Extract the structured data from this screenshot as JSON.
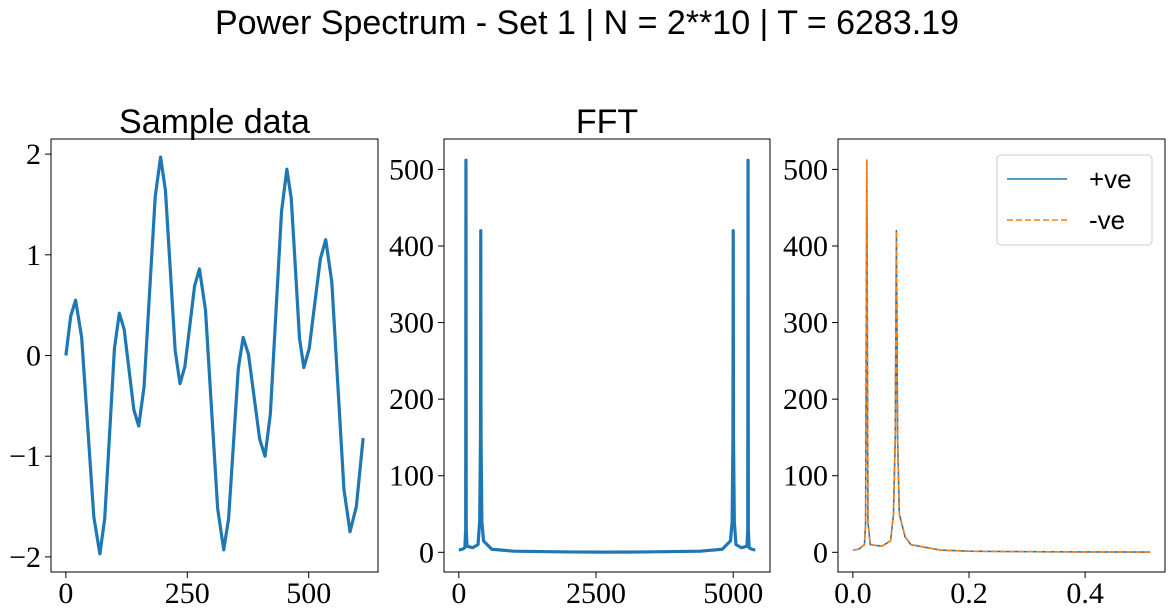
{
  "title": "Power Spectrum - Set 1 | N = 2**10 | T = 6283.19",
  "chart_data": [
    {
      "type": "line",
      "title": "Sample data",
      "color": "#1f77b4",
      "x": [
        0,
        10,
        20,
        32.5,
        45,
        57.5,
        70,
        80,
        90,
        100,
        110,
        120,
        130,
        140,
        150,
        161,
        172.5,
        184,
        195,
        205,
        215,
        225,
        235,
        245,
        255,
        265,
        275,
        287.5,
        300,
        312.5,
        325,
        335,
        345,
        355,
        365,
        376,
        387.5,
        399,
        410,
        421,
        432.5,
        444,
        455,
        464,
        472.5,
        481,
        490,
        501,
        512.5,
        524,
        535,
        547.5,
        560,
        572.5,
        585,
        598,
        612
      ],
      "values": [
        0,
        0.39,
        0.55,
        0.18,
        -0.71,
        -1.6,
        -1.97,
        -1.62,
        -0.78,
        0.07,
        0.42,
        0.26,
        -0.14,
        -0.54,
        -0.7,
        -0.31,
        0.64,
        1.58,
        1.97,
        1.64,
        0.85,
        0.05,
        -0.28,
        -0.11,
        0.29,
        0.69,
        0.86,
        0.45,
        -0.54,
        -1.52,
        -1.93,
        -1.62,
        -0.88,
        -0.13,
        0.18,
        0.01,
        -0.41,
        -0.83,
        -1.0,
        -0.58,
        0.43,
        1.43,
        1.85,
        1.56,
        0.87,
        0.17,
        -0.12,
        0.07,
        0.52,
        0.96,
        1.15,
        0.73,
        -0.3,
        -1.33,
        -1.75,
        -1.5,
        -0.82
      ],
      "xlim": [
        -30.6,
        642.6
      ],
      "ylim": [
        -2.15,
        2.15
      ],
      "xticks": [
        0,
        250,
        500
      ],
      "yticks": [
        {
          "value": -2,
          "label": "−2"
        },
        {
          "value": -1,
          "label": "−1"
        },
        0,
        1,
        2
      ]
    },
    {
      "type": "line",
      "title": "FFT",
      "color": "#1f77b4",
      "x": [
        0,
        60,
        110,
        125,
        130,
        135,
        150,
        250,
        350,
        380,
        395,
        400,
        405,
        420,
        450,
        600,
        1000,
        2000,
        2700,
        3400,
        4400,
        4800,
        4950,
        4980,
        4995,
        5000,
        5005,
        5020,
        5050,
        5150,
        5250,
        5265,
        5270,
        5275,
        5290,
        5340,
        5400
      ],
      "values": [
        3,
        4,
        6,
        30,
        512,
        30,
        8,
        6,
        10,
        40,
        150,
        420,
        150,
        40,
        15,
        4,
        1.5,
        0.5,
        0.3,
        0.5,
        1.5,
        4,
        15,
        40,
        150,
        420,
        150,
        40,
        10,
        6,
        8,
        30,
        512,
        30,
        6,
        4,
        3
      ],
      "xlim": [
        -270,
        5670
      ],
      "ylim": [
        -25.7,
        539.7
      ],
      "xticks": [
        0,
        2500,
        5000
      ],
      "yticks": [
        0,
        100,
        200,
        300,
        400,
        500
      ]
    },
    {
      "type": "line",
      "legend": "upper right",
      "x": [
        0,
        0.01,
        0.02,
        0.022,
        0.024,
        0.026,
        0.03,
        0.05,
        0.065,
        0.07,
        0.073,
        0.075,
        0.077,
        0.08,
        0.09,
        0.1,
        0.15,
        0.2,
        0.3,
        0.4,
        0.512
      ],
      "series": [
        {
          "name": "+ve",
          "color": "#1f77b4",
          "linestyle": "solid",
          "values": [
            3,
            4,
            10,
            40,
            512,
            40,
            10,
            8,
            15,
            50,
            150,
            420,
            150,
            50,
            20,
            10,
            3,
            1.5,
            0.8,
            0.5,
            0.3
          ]
        },
        {
          "name": "-ve",
          "color": "#ff7f0e",
          "linestyle": "dashed",
          "values": [
            3,
            4,
            10,
            40,
            512,
            40,
            10,
            8,
            15,
            50,
            150,
            420,
            150,
            50,
            20,
            10,
            3,
            1.5,
            0.8,
            0.5,
            0.3
          ]
        }
      ],
      "xlim": [
        -0.0256,
        0.5376
      ],
      "ylim": [
        -25.7,
        539.7
      ],
      "xticks": [
        {
          "value": 0,
          "label": "0.0"
        },
        0.2,
        0.4
      ],
      "yticks": [
        0,
        100,
        200,
        300,
        400,
        500
      ]
    }
  ]
}
